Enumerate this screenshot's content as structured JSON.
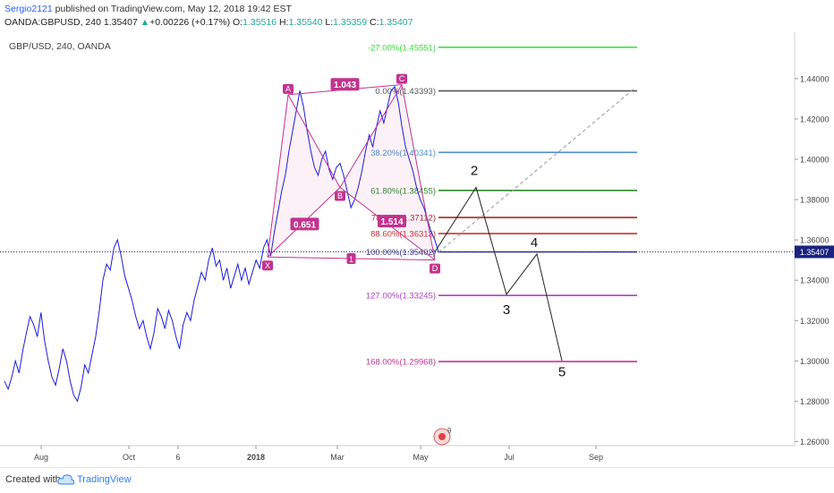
{
  "header": {
    "author": "Sergio2121",
    "published": "published on TradingView.com, May 12, 2018 19:42 EST",
    "symbol": "OANDA:GBPUSD, 240",
    "last": "1.35407",
    "change_arrow": "▲",
    "change": "+0.00226 (+0.17%)",
    "o_label": "O:",
    "o_value": "1.35516",
    "h_label": "H:",
    "h_value": "1.35540",
    "l_label": "L:",
    "l_value": "1.35359",
    "c_label": "C:",
    "c_value": "1.35407"
  },
  "chart_data": {
    "type": "line",
    "symbol_label": "GBP/USD, 240, OANDA",
    "x_ticks": [
      "Aug",
      "Oct",
      "6",
      "2018",
      "Mar",
      "May",
      "Jul",
      "Sep"
    ],
    "y_ticks": [
      "1.44000",
      "1.42000",
      "1.40000",
      "1.38000",
      "1.36000",
      "1.34000",
      "1.32000",
      "1.30000",
      "1.28000",
      "1.26000"
    ],
    "y_tick_values": [
      1.44,
      1.42,
      1.4,
      1.38,
      1.36,
      1.34,
      1.32,
      1.3,
      1.28,
      1.26
    ],
    "ylim": [
      1.258,
      1.463
    ],
    "last_price": "1.35407",
    "last_price_value": 1.35407,
    "series": [
      {
        "values": [
          1.29,
          1.286,
          1.292,
          1.3,
          1.294,
          1.305,
          1.314,
          1.322,
          1.318,
          1.312,
          1.324,
          1.31,
          1.3,
          1.292,
          1.288,
          1.296,
          1.306,
          1.3,
          1.29,
          1.283,
          1.28,
          1.287,
          1.298,
          1.294,
          1.303,
          1.312,
          1.325,
          1.34,
          1.348,
          1.345,
          1.356,
          1.36,
          1.352,
          1.342,
          1.336,
          1.33,
          1.322,
          1.316,
          1.32,
          1.312,
          1.306,
          1.314,
          1.326,
          1.322,
          1.316,
          1.325,
          1.32,
          1.312,
          1.306,
          1.318,
          1.324,
          1.32,
          1.33,
          1.337,
          1.344,
          1.34,
          1.35,
          1.356,
          1.347,
          1.35,
          1.34,
          1.346,
          1.336,
          1.342,
          1.348,
          1.34,
          1.346,
          1.338,
          1.344,
          1.35,
          1.346,
          1.356,
          1.36,
          1.352,
          1.364,
          1.374,
          1.384,
          1.392,
          1.404,
          1.414,
          1.424,
          1.434,
          1.426,
          1.414,
          1.404,
          1.396,
          1.392,
          1.4,
          1.404,
          1.395,
          1.39,
          1.396,
          1.398,
          1.392,
          1.384,
          1.376,
          1.38,
          1.386,
          1.394,
          1.404,
          1.412,
          1.406,
          1.416,
          1.424,
          1.418,
          1.426,
          1.434,
          1.436,
          1.428,
          1.416,
          1.406,
          1.4,
          1.394,
          1.386,
          1.38,
          1.376,
          1.37,
          1.364,
          1.36,
          1.354
        ]
      }
    ],
    "fib_levels": [
      {
        "label": "-27.00%(1.45551)",
        "value": 1.45551,
        "color": "#33dd33"
      },
      {
        "label": "0.00%(1.43393)",
        "value": 1.43393,
        "color": "#555555"
      },
      {
        "label": "38.20%(1.40341)",
        "value": 1.40341,
        "color": "#4a90c8"
      },
      {
        "label": "61.80%(1.38455)",
        "value": 1.38455,
        "color": "#2e8b2e"
      },
      {
        "label": "78.60%(1.37112)",
        "value": 1.37112,
        "color": "#a52a2a"
      },
      {
        "label": "88.60%(1.36313)",
        "value": 1.36313,
        "color": "#c83232"
      },
      {
        "label": "100.00%(1.35402)",
        "value": 1.35402,
        "color": "#3d3d8f"
      },
      {
        "label": "127.00%(1.33245)",
        "value": 1.33245,
        "color": "#b040c8"
      },
      {
        "label": "168.00%(1.29968)",
        "value": 1.29968,
        "color": "#c83296"
      }
    ],
    "pattern_points": [
      {
        "label": "X",
        "value": 1.3515
      },
      {
        "label": "A",
        "value": 1.432
      },
      {
        "label": "B",
        "value": 1.386
      },
      {
        "label": "C",
        "value": 1.437
      },
      {
        "label": "D",
        "value": 1.35
      }
    ],
    "ratios": [
      "1.043",
      "0.651",
      "1.514"
    ],
    "ratio_point_label": "1",
    "wave_labels": [
      "2",
      "3",
      "4",
      "5"
    ],
    "wave_values": [
      1.386,
      1.333,
      1.353,
      1.3
    ],
    "colors": {
      "price_line": "#1a1adc",
      "pattern": "#c2338f",
      "wave": "#222222",
      "last_price_bg": "#1a237e"
    }
  },
  "footer": {
    "created_with": "Created with",
    "brand": "TradingView"
  }
}
